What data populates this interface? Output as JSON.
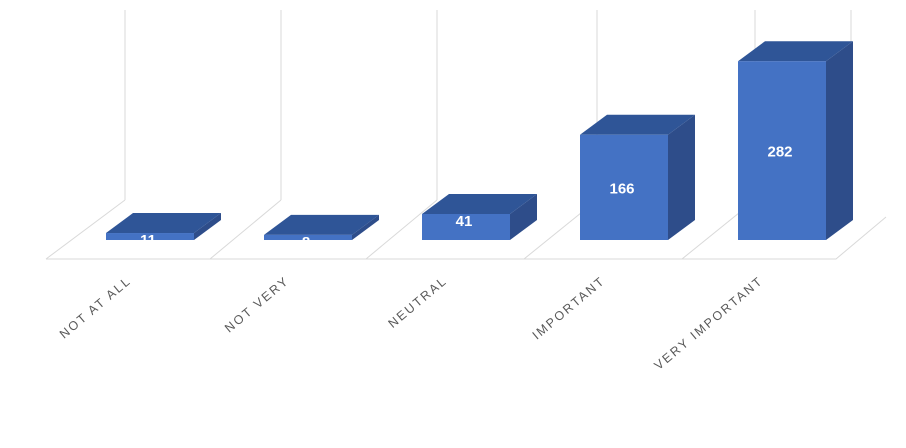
{
  "chart_data": {
    "type": "bar",
    "style": "3d-column",
    "categories": [
      "NOT AT ALL",
      "NOT VERY",
      "NEUTRAL",
      "IMPORTANT",
      "VERY IMPORTANT"
    ],
    "values": [
      11,
      8,
      41,
      166,
      282
    ],
    "data_labels": [
      "11",
      "8",
      "41",
      "166",
      "282"
    ],
    "title": "",
    "xlabel": "",
    "ylabel": "",
    "ylim": [
      0,
      300
    ],
    "grid": "vertical category separators",
    "legend": "none",
    "colors": {
      "bar_front": "#4472C4",
      "bar_top": "#2F5597",
      "bar_side": "#2E4D8A",
      "gridline": "#D9D9D9",
      "label_text": "#595959",
      "value_text": "#FFFFFF"
    }
  }
}
